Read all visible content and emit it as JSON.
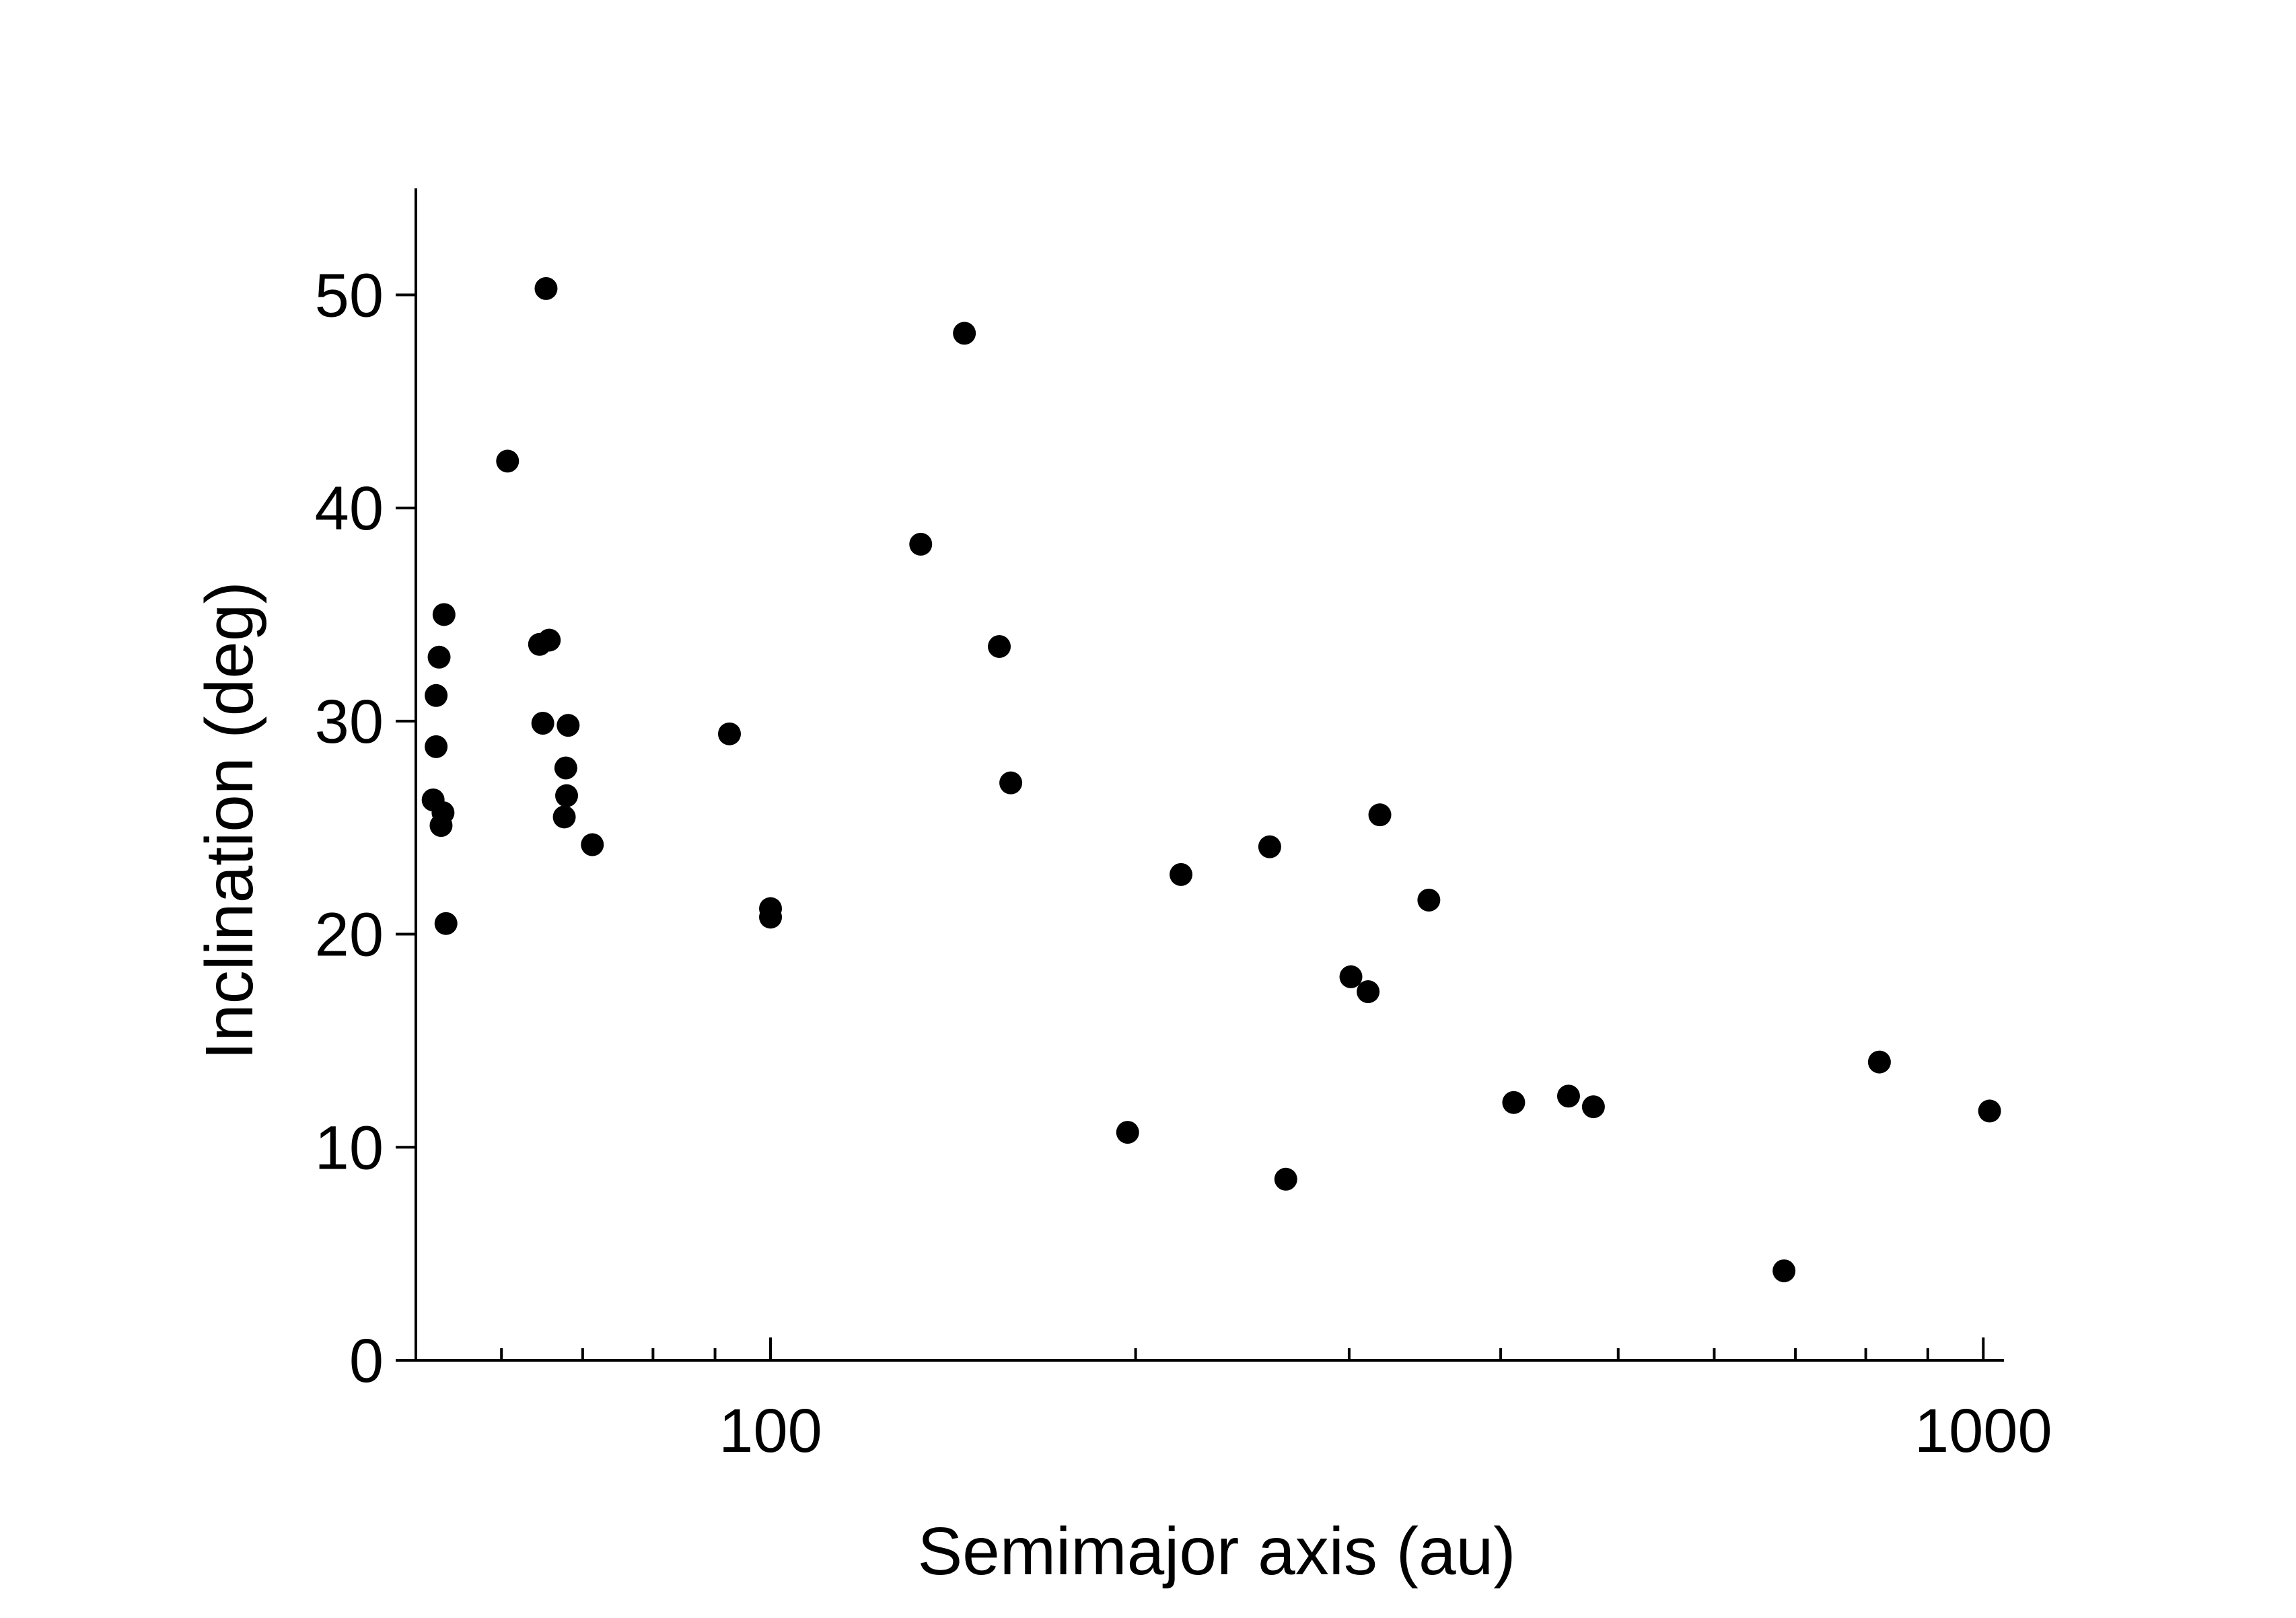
{
  "chart_data": {
    "type": "scatter",
    "title": "",
    "xlabel": "Semimajor axis (au)",
    "ylabel": "Inclination (deg)",
    "xscale": "log",
    "xlim": [
      51,
      1040
    ],
    "ylim": [
      0,
      55
    ],
    "grid": false,
    "legend": "none",
    "point_color": "#000000",
    "x_ticks": [
      {
        "value": 100,
        "label": "100"
      },
      {
        "value": 1000,
        "label": "1000"
      }
    ],
    "x_minor_ticks": [
      60,
      70,
      80,
      90,
      200,
      300,
      400,
      500,
      600,
      700,
      800,
      900
    ],
    "y_ticks": [
      {
        "value": 0,
        "label": "0"
      },
      {
        "value": 10,
        "label": "10"
      },
      {
        "value": 20,
        "label": "20"
      },
      {
        "value": 30,
        "label": "30"
      },
      {
        "value": 40,
        "label": "40"
      },
      {
        "value": 50,
        "label": "50"
      }
    ],
    "series": [
      {
        "points": [
          {
            "x": 52.7,
            "y": 26.3
          },
          {
            "x": 53.0,
            "y": 31.2
          },
          {
            "x": 53.0,
            "y": 28.8
          },
          {
            "x": 53.3,
            "y": 33.0
          },
          {
            "x": 53.5,
            "y": 25.1
          },
          {
            "x": 53.7,
            "y": 25.7
          },
          {
            "x": 53.8,
            "y": 35.0
          },
          {
            "x": 54.0,
            "y": 20.5
          },
          {
            "x": 60.7,
            "y": 42.2
          },
          {
            "x": 64.5,
            "y": 33.6
          },
          {
            "x": 64.9,
            "y": 29.9
          },
          {
            "x": 65.3,
            "y": 50.3
          },
          {
            "x": 65.7,
            "y": 33.8
          },
          {
            "x": 67.6,
            "y": 25.5
          },
          {
            "x": 67.8,
            "y": 27.8
          },
          {
            "x": 67.9,
            "y": 26.5
          },
          {
            "x": 68.1,
            "y": 29.8
          },
          {
            "x": 71.3,
            "y": 24.2
          },
          {
            "x": 92.5,
            "y": 29.4
          },
          {
            "x": 100.0,
            "y": 21.2
          },
          {
            "x": 100.0,
            "y": 20.8
          },
          {
            "x": 133.0,
            "y": 38.3
          },
          {
            "x": 144.5,
            "y": 48.2
          },
          {
            "x": 154.4,
            "y": 33.5
          },
          {
            "x": 157.8,
            "y": 27.1
          },
          {
            "x": 197.0,
            "y": 10.7
          },
          {
            "x": 218.0,
            "y": 22.8
          },
          {
            "x": 258.0,
            "y": 24.1
          },
          {
            "x": 266.0,
            "y": 8.5
          },
          {
            "x": 301.0,
            "y": 18.0
          },
          {
            "x": 311.0,
            "y": 17.3
          },
          {
            "x": 318.0,
            "y": 25.6
          },
          {
            "x": 349.0,
            "y": 21.6
          },
          {
            "x": 410.0,
            "y": 12.1
          },
          {
            "x": 455.0,
            "y": 12.4
          },
          {
            "x": 477.0,
            "y": 11.9
          },
          {
            "x": 685.0,
            "y": 4.2
          },
          {
            "x": 821.0,
            "y": 14.0
          },
          {
            "x": 1012.0,
            "y": 11.7
          }
        ]
      }
    ]
  }
}
